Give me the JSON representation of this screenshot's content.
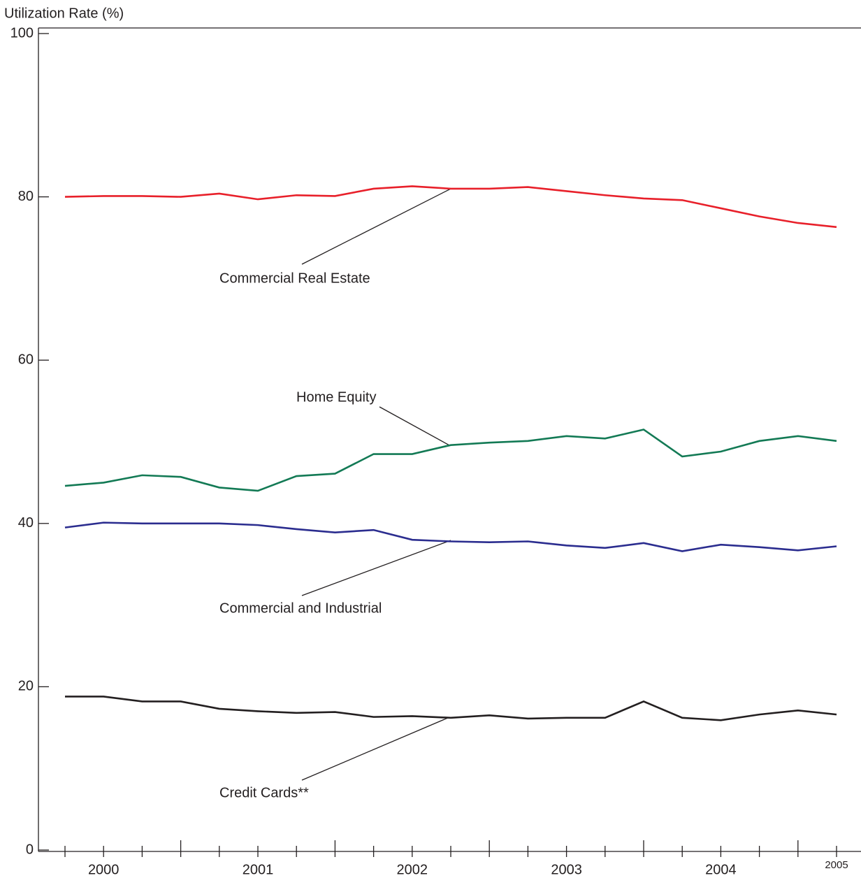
{
  "chart_data": {
    "type": "line",
    "y_label": "Utilization Rate (%)",
    "categories": [
      null,
      "2000",
      null,
      null,
      null,
      "2001",
      null,
      null,
      null,
      "2002",
      null,
      null,
      null,
      "2003",
      null,
      null,
      null,
      "2004",
      null,
      null,
      "2005"
    ],
    "series": [
      {
        "name": "Commercial Real Estate",
        "color": "#e8202a",
        "values": [
          80.0,
          80.1,
          80.1,
          80.0,
          80.4,
          79.7,
          80.2,
          80.1,
          81.0,
          81.3,
          81.0,
          81.0,
          81.2,
          80.7,
          80.2,
          79.8,
          79.6,
          78.6,
          77.6,
          76.8,
          76.3
        ]
      },
      {
        "name": "Home Equity",
        "color": "#137a55",
        "values": [
          44.6,
          45.0,
          45.9,
          45.7,
          44.4,
          44.0,
          45.8,
          46.1,
          48.5,
          48.5,
          49.6,
          49.9,
          50.1,
          50.7,
          50.4,
          51.5,
          48.2,
          48.8,
          50.1,
          50.7,
          50.1
        ]
      },
      {
        "name": "Commercial and Industrial",
        "color": "#2b2d8f",
        "values": [
          39.5,
          40.1,
          40.0,
          40.0,
          40.0,
          39.8,
          39.3,
          38.9,
          39.2,
          38.0,
          37.8,
          37.7,
          37.8,
          37.3,
          37.0,
          37.6,
          36.6,
          37.4,
          37.1,
          36.7,
          37.2
        ]
      },
      {
        "name": "Credit Cards**",
        "color": "#231f20",
        "values": [
          18.8,
          18.8,
          18.2,
          18.2,
          17.3,
          17.0,
          16.8,
          16.9,
          16.3,
          16.4,
          16.2,
          16.5,
          16.1,
          16.2,
          16.2,
          18.2,
          16.2,
          15.9,
          16.6,
          17.1,
          16.6
        ]
      }
    ],
    "ylim": [
      0,
      100
    ],
    "yticks": [
      0,
      20,
      40,
      60,
      80,
      100
    ]
  }
}
